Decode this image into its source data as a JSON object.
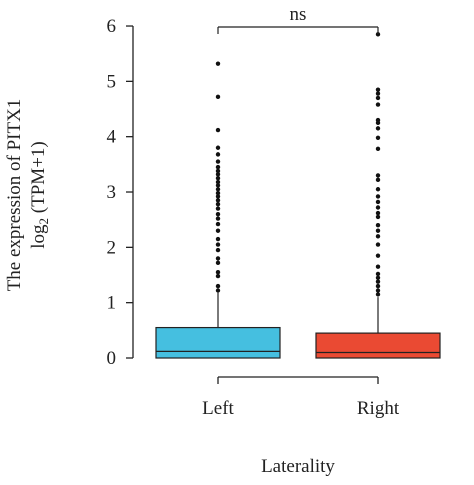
{
  "chart_data": {
    "type": "box",
    "ylabel_line1": "The expression of PITX1",
    "ylabel_line2_prefix": "log",
    "ylabel_line2_sub": "2",
    "ylabel_line2_suffix": " (TPM+1)",
    "xlabel": "Laterality",
    "ylim": [
      0,
      6
    ],
    "yticks": [
      0,
      1,
      2,
      3,
      4,
      5,
      6
    ],
    "categories": [
      "Left",
      "Right"
    ],
    "grid": false,
    "significance": {
      "label": "ns",
      "from": "Left",
      "to": "Right",
      "y": 6.0
    },
    "boxes": [
      {
        "name": "Left",
        "color": "#45bfe0",
        "q1": 0.0,
        "median": 0.12,
        "q3": 0.55,
        "whisker_low": 0.0,
        "whisker_high": 1.18,
        "outliers": [
          1.22,
          1.3,
          1.48,
          1.55,
          1.72,
          1.8,
          1.95,
          2.05,
          2.15,
          2.3,
          2.42,
          2.52,
          2.6,
          2.7,
          2.78,
          2.85,
          2.92,
          2.98,
          3.05,
          3.12,
          3.18,
          3.25,
          3.32,
          3.38,
          3.45,
          3.55,
          3.68,
          3.8,
          4.12,
          4.72,
          5.32
        ]
      },
      {
        "name": "Right",
        "color": "#ea4a33",
        "q1": 0.0,
        "median": 0.1,
        "q3": 0.45,
        "whisker_low": 0.0,
        "whisker_high": 1.1,
        "outliers": [
          1.15,
          1.22,
          1.3,
          1.38,
          1.45,
          1.52,
          1.65,
          1.85,
          2.05,
          2.2,
          2.3,
          2.4,
          2.55,
          2.62,
          2.72,
          2.82,
          2.92,
          3.05,
          3.22,
          3.3,
          3.78,
          3.98,
          4.15,
          4.25,
          4.3,
          4.58,
          4.7,
          4.78,
          4.85,
          5.85
        ]
      }
    ]
  }
}
